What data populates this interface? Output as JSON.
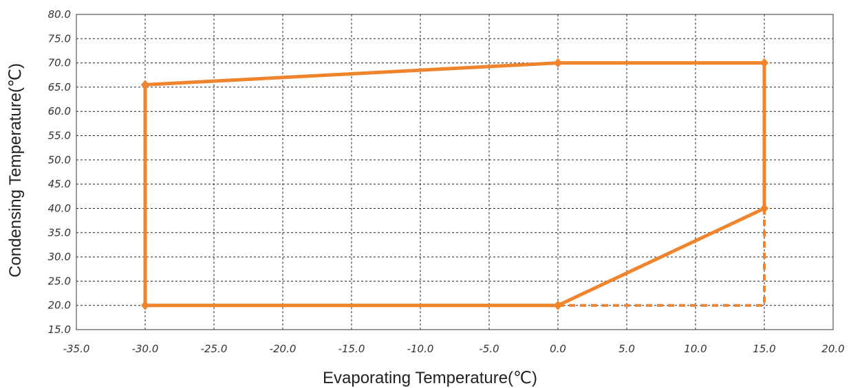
{
  "chart_data": {
    "type": "line",
    "title": "",
    "xlabel": "Evaporating Temperature(℃)",
    "ylabel": "Condensing Temperature(℃)",
    "xlim": [
      -35,
      20
    ],
    "ylim": [
      15,
      80
    ],
    "x_ticks": [
      "-35.0",
      "-30.0",
      "-25.0",
      "-20.0",
      "-15.0",
      "-10.0",
      "-5.0",
      "0.0",
      "5.0",
      "10.0",
      "15.0",
      "20.0"
    ],
    "y_ticks": [
      "15.0",
      "20.0",
      "25.0",
      "30.0",
      "35.0",
      "40.0",
      "45.0",
      "50.0",
      "55.0",
      "60.0",
      "65.0",
      "70.0",
      "75.0",
      "80.0"
    ],
    "grid": true,
    "legend": "none",
    "series": [
      {
        "style": "solid",
        "color": "#F0842C",
        "markers": true,
        "points": [
          [
            -30,
            20
          ],
          [
            -30,
            65.5
          ],
          [
            0,
            70
          ],
          [
            15,
            70
          ],
          [
            15,
            40
          ],
          [
            0,
            20
          ],
          [
            -30,
            20
          ]
        ]
      },
      {
        "style": "dashed",
        "color": "#F0842C",
        "markers": false,
        "points": [
          [
            0,
            20
          ],
          [
            15,
            20
          ],
          [
            15,
            40
          ]
        ]
      }
    ]
  }
}
